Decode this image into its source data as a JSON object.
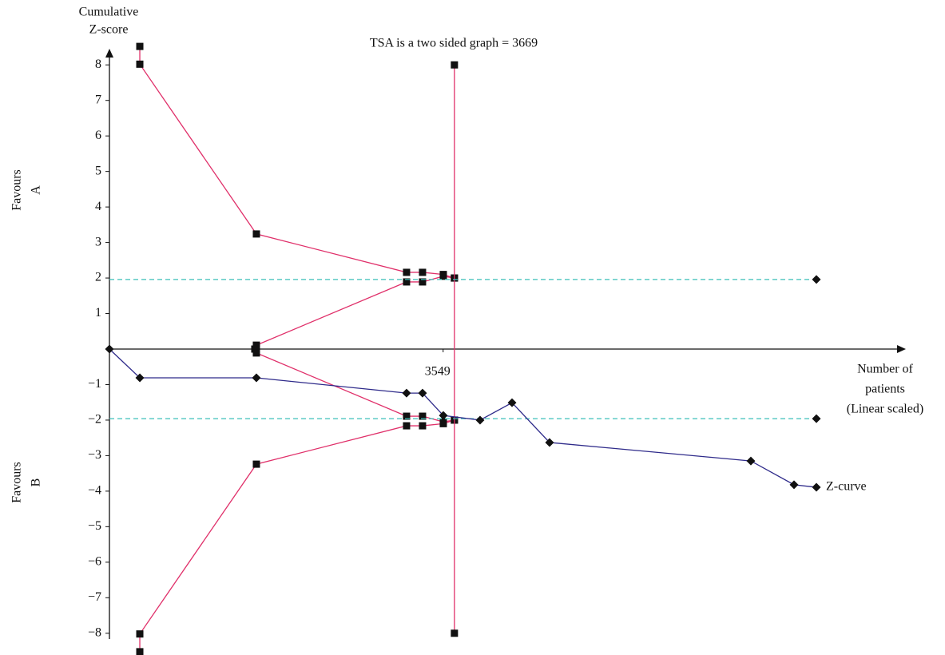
{
  "chart_data": {
    "type": "line",
    "title": "TSA is a two sided graph = 3669",
    "y_label": [
      "Cumulative",
      "Z-score"
    ],
    "x_label": [
      "Number of",
      "patients",
      "(Linear scaled)"
    ],
    "side_labels": [
      [
        "Favours",
        "A"
      ],
      [
        "Favours",
        "B"
      ]
    ],
    "annotation": "Z-curve",
    "xlim": [
      0,
      8462
    ],
    "ylim": [
      -8.5,
      8.5
    ],
    "xticks": [
      3549
    ],
    "yticks": [
      {
        "value": -8,
        "label": "−8"
      },
      {
        "value": -7,
        "label": "−7"
      },
      {
        "value": -6,
        "label": "−6"
      },
      {
        "value": -5,
        "label": "−5"
      },
      {
        "value": -4,
        "label": "−4"
      },
      {
        "value": -3,
        "label": "−3"
      },
      {
        "value": -2,
        "label": "−2"
      },
      {
        "value": -1,
        "label": "−1"
      },
      1,
      2,
      3,
      4,
      5,
      6,
      7,
      8
    ],
    "series": [
      {
        "name": "Z-curve",
        "color": "#2e2a8a",
        "marker": "diamond",
        "x": [
          0,
          323,
          1563,
          3160,
          3330,
          3551,
          3942,
          4282,
          4681,
          6822,
          7281,
          7519
        ],
        "values": [
          0,
          -0.81,
          -0.81,
          -1.24,
          -1.24,
          -1.87,
          -2.0,
          -1.51,
          -2.63,
          -3.15,
          -3.82,
          -3.89
        ]
      },
      {
        "color": "#e0306a",
        "marker": "square",
        "x": [
          323,
          323,
          1563,
          3160,
          3330,
          3551,
          3669
        ],
        "values": [
          8.52,
          8.02,
          3.24,
          2.16,
          2.16,
          2.1,
          2.0
        ]
      },
      {
        "color": "#e0306a",
        "marker": "square",
        "x": [
          323,
          323,
          1563,
          3160,
          3330,
          3551,
          3669
        ],
        "values": [
          -8.52,
          -8.02,
          -3.24,
          -2.16,
          -2.16,
          -2.1,
          -2.0
        ]
      },
      {
        "color": "#e0306a",
        "marker": "square",
        "x": [
          1546,
          1563,
          3160,
          3330,
          3551,
          3669
        ],
        "values": [
          0,
          0.11,
          1.89,
          1.89,
          2.05,
          2.0
        ]
      },
      {
        "color": "#e0306a",
        "marker": "square",
        "x": [
          1546,
          1563,
          3160,
          3330,
          3551,
          3669
        ],
        "values": [
          0,
          -0.11,
          -1.89,
          -1.89,
          -2.05,
          -2.0
        ]
      },
      {
        "color": "#e0306a",
        "marker": "square",
        "x": [
          3669,
          3669
        ],
        "values": [
          8,
          -8
        ]
      },
      {
        "color": "#3bbfb8",
        "dashed": true,
        "marker": "diamond",
        "end_marker_only": true,
        "x": [
          0,
          7519
        ],
        "values": [
          1.96,
          1.96
        ]
      },
      {
        "color": "#3bbfb8",
        "dashed": true,
        "marker": "diamond",
        "end_marker_only": true,
        "x": [
          0,
          7519
        ],
        "values": [
          -1.96,
          -1.96
        ]
      }
    ]
  }
}
